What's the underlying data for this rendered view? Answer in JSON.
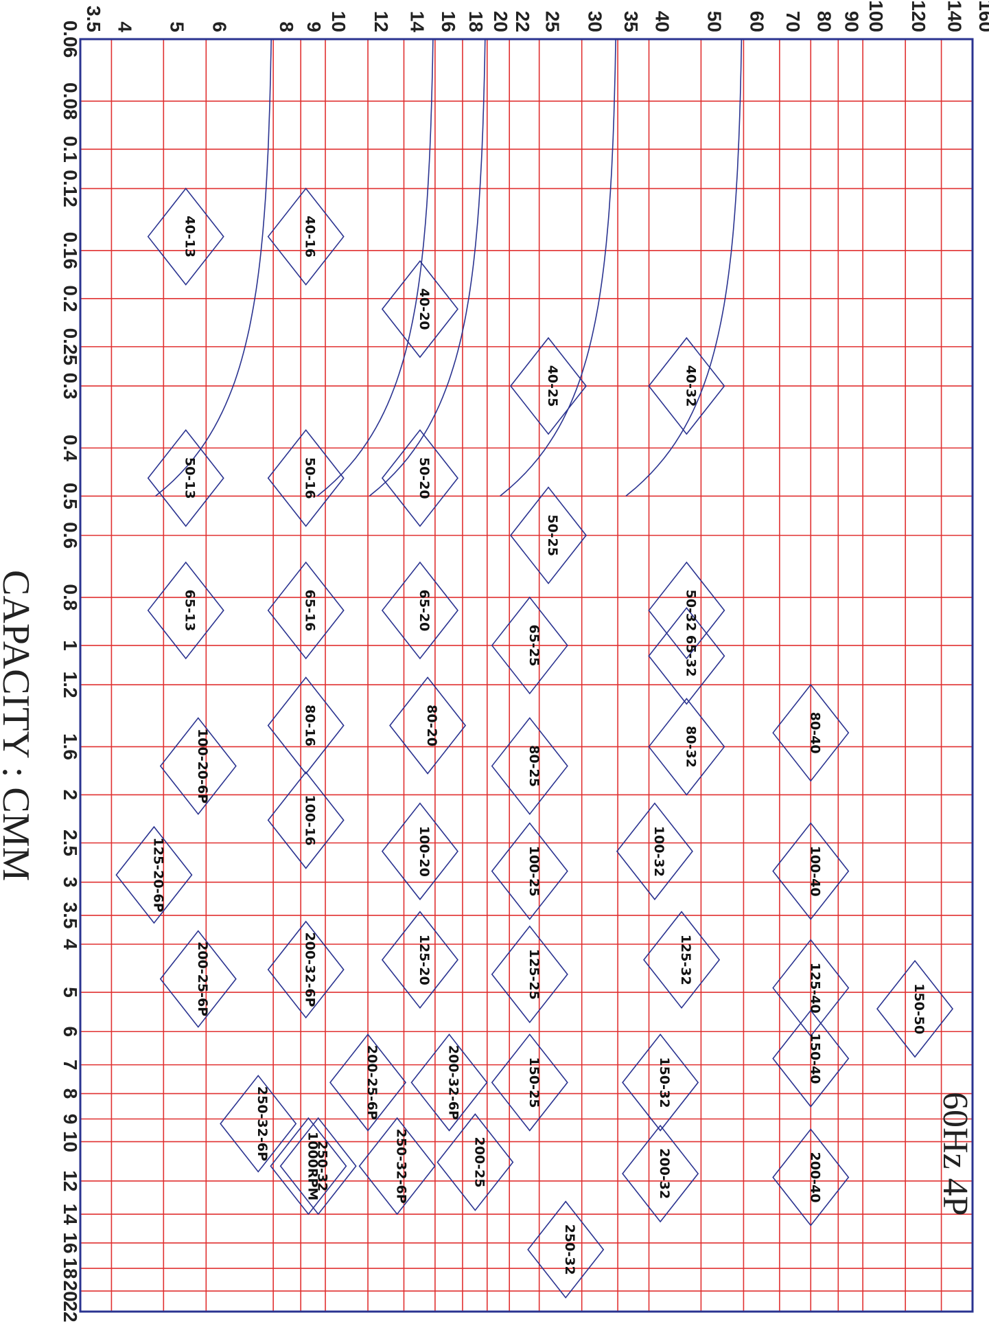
{
  "chart_data": {
    "type": "line",
    "title": "60Hz 4P",
    "xlabel": "CAPACITY : CMM",
    "ylabel": "",
    "x_scale": "log",
    "y_scale": "log",
    "grid": true,
    "xlim": [
      0.06,
      22
    ],
    "ylim": [
      3.5,
      160
    ],
    "x_ticks": [
      0.06,
      0.08,
      0.1,
      0.12,
      0.16,
      0.2,
      0.25,
      0.3,
      0.4,
      0.5,
      0.6,
      0.8,
      1,
      1.2,
      1.6,
      2,
      2.5,
      3,
      3.5,
      4,
      5,
      6,
      7,
      8,
      9,
      10,
      12,
      14,
      16,
      18,
      20,
      22
    ],
    "x_tick_labels": [
      "0.06",
      "0.08",
      "0.1",
      "0.12",
      "0.16",
      "0.2",
      "0.25",
      "0.3",
      "0.4",
      "0.5",
      "0.6",
      "0.8",
      "1",
      "1.2",
      "1.6",
      "2",
      "2.5",
      "3",
      "3.5",
      "4",
      "5",
      "6",
      "7",
      "8",
      "9",
      "10",
      "12",
      "14",
      "16",
      "18",
      "20",
      "22"
    ],
    "y_ticks": [
      3.5,
      4,
      5,
      6,
      8,
      9,
      10,
      12,
      14,
      16,
      18,
      20,
      22,
      25,
      30,
      35,
      40,
      50,
      60,
      70,
      80,
      90,
      100,
      120,
      140,
      160
    ],
    "y_tick_labels": [
      "3.5",
      "4",
      "5",
      "6",
      "8",
      "9",
      "10",
      "12",
      "14",
      "16",
      "18",
      "20",
      "22",
      "25",
      "30",
      "35",
      "40",
      "50",
      "60",
      "70",
      "80",
      "90",
      "100",
      "120",
      "140",
      "160"
    ],
    "reference_heads": [
      8,
      16,
      20,
      35,
      60
    ],
    "zones": [
      {
        "label": "40-13",
        "x": 0.15,
        "y": 5.5
      },
      {
        "label": "40-16",
        "x": 0.15,
        "y": 9.2
      },
      {
        "label": "40-20",
        "x": 0.21,
        "y": 15
      },
      {
        "label": "40-25",
        "x": 0.3,
        "y": 26
      },
      {
        "label": "40-32",
        "x": 0.3,
        "y": 47
      },
      {
        "label": "50-13",
        "x": 0.46,
        "y": 5.5
      },
      {
        "label": "50-16",
        "x": 0.46,
        "y": 9.2
      },
      {
        "label": "50-20",
        "x": 0.46,
        "y": 15
      },
      {
        "label": "50-25",
        "x": 0.6,
        "y": 26
      },
      {
        "label": "50-32",
        "x": 0.85,
        "y": 47
      },
      {
        "label": "65-13",
        "x": 0.85,
        "y": 5.5
      },
      {
        "label": "65-16",
        "x": 0.85,
        "y": 9.2
      },
      {
        "label": "65-20",
        "x": 0.85,
        "y": 15
      },
      {
        "label": "65-25",
        "x": 1.0,
        "y": 24
      },
      {
        "label": "65-32",
        "x": 1.05,
        "y": 47
      },
      {
        "label": "80-16",
        "x": 1.45,
        "y": 9.2
      },
      {
        "label": "80-20",
        "x": 1.45,
        "y": 15.5
      },
      {
        "label": "80-25",
        "x": 1.75,
        "y": 24
      },
      {
        "label": "80-32",
        "x": 1.6,
        "y": 47
      },
      {
        "label": "80-40",
        "x": 1.5,
        "y": 80
      },
      {
        "label": "100-20-6P",
        "x": 1.75,
        "y": 5.8
      },
      {
        "label": "100-16",
        "x": 2.25,
        "y": 9.2
      },
      {
        "label": "100-20",
        "x": 2.6,
        "y": 15
      },
      {
        "label": "100-25",
        "x": 2.85,
        "y": 24
      },
      {
        "label": "100-32",
        "x": 2.6,
        "y": 41
      },
      {
        "label": "100-40",
        "x": 2.85,
        "y": 80
      },
      {
        "label": "125-20-6P",
        "x": 2.9,
        "y": 4.8
      },
      {
        "label": "200-25-6P",
        "x": 4.7,
        "y": 5.8
      },
      {
        "label": "200-32-6P",
        "x": 4.5,
        "y": 9.2
      },
      {
        "label": "125-20",
        "x": 4.3,
        "y": 15
      },
      {
        "label": "125-25",
        "x": 4.6,
        "y": 24
      },
      {
        "label": "125-32",
        "x": 4.3,
        "y": 46
      },
      {
        "label": "125-40",
        "x": 4.9,
        "y": 80
      },
      {
        "label": "150-50",
        "x": 5.4,
        "y": 125
      },
      {
        "label": "150-40",
        "x": 6.8,
        "y": 80
      },
      {
        "label": "200-32-6P",
        "x": 7.6,
        "y": 17
      },
      {
        "label": "200-25-6P",
        "x": 7.6,
        "y": 12
      },
      {
        "label": "150-25",
        "x": 7.6,
        "y": 24
      },
      {
        "label": "150-32",
        "x": 7.6,
        "y": 42
      },
      {
        "label": "250-32-6P",
        "x": 9.2,
        "y": 7.5
      },
      {
        "label": "250-32-6P",
        "x": 11.2,
        "y": 13.6
      },
      {
        "label": "250-32",
        "x": 11.2,
        "y": 9.7
      },
      {
        "label": "1000RPM",
        "x": 11.2,
        "y": 9.3
      },
      {
        "label": "200-25",
        "x": 11.0,
        "y": 19
      },
      {
        "label": "200-32",
        "x": 11.6,
        "y": 42
      },
      {
        "label": "200-40",
        "x": 11.8,
        "y": 80
      },
      {
        "label": "250-32",
        "x": 16.5,
        "y": 28
      }
    ]
  },
  "colors": {
    "grid": "#e03030",
    "curves": "#2a3390",
    "frame": "#2a3390",
    "text": "#222222"
  }
}
